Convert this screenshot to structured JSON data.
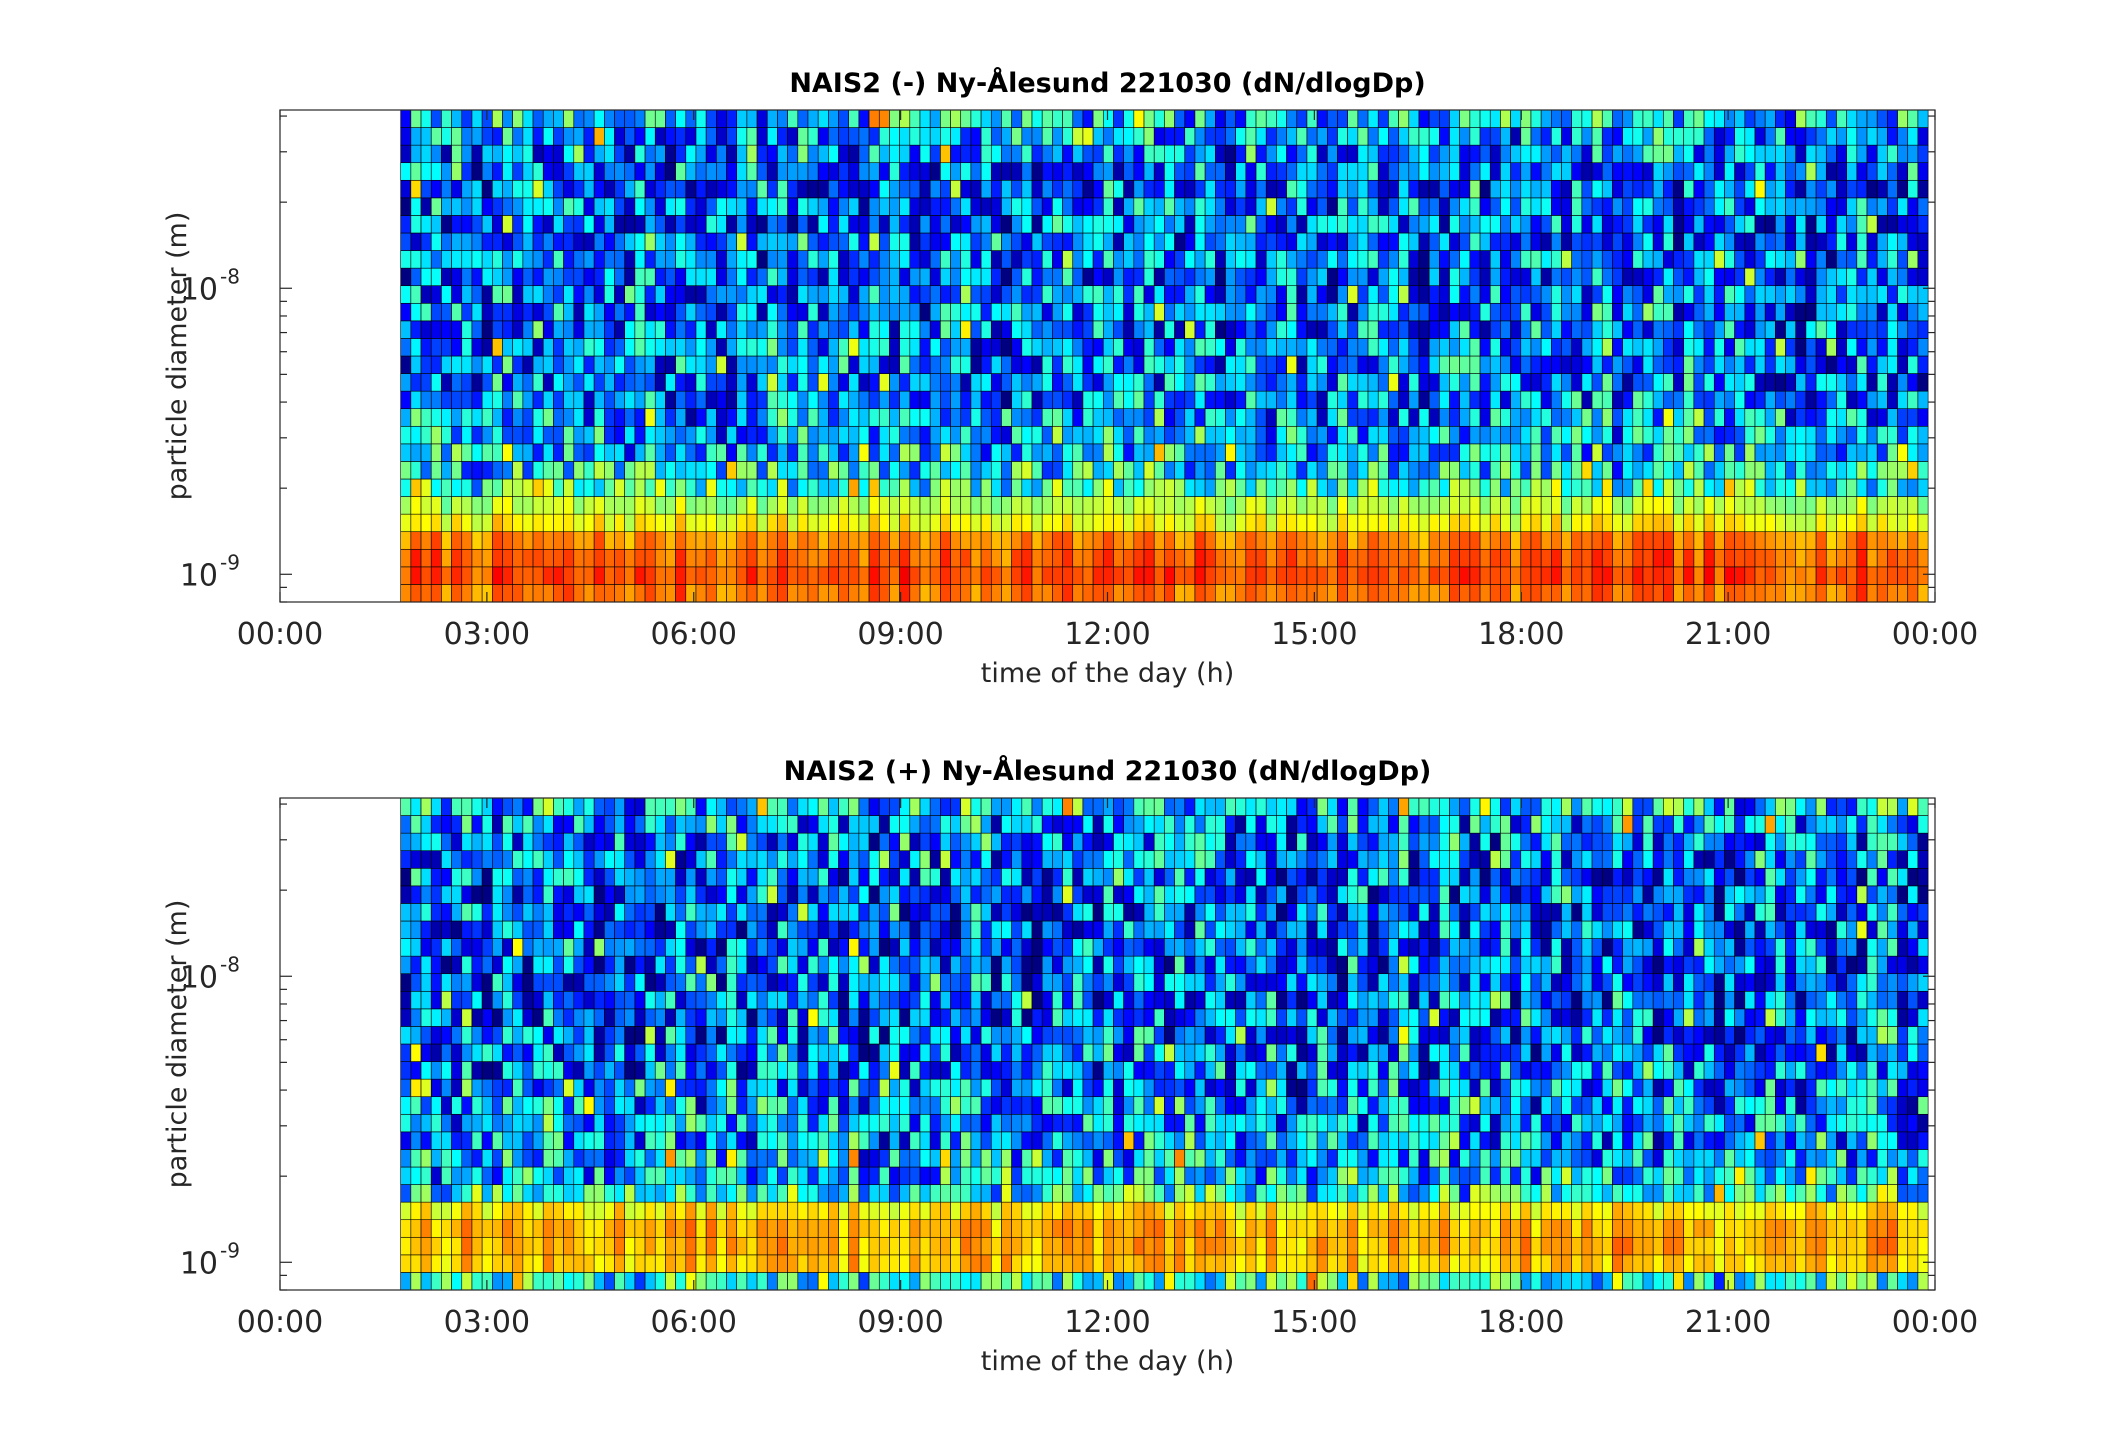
{
  "chart_data": [
    {
      "type": "heatmap",
      "title": "NAIS2 (-) Ny-Ålesund 221030 (dN/dlogDp)",
      "xlabel": "time of the day (h)",
      "ylabel": "particle diameter (m)",
      "x_tick_labels": [
        "00:00",
        "03:00",
        "06:00",
        "09:00",
        "12:00",
        "15:00",
        "18:00",
        "21:00",
        "00:00"
      ],
      "x_ticks_hours": [
        0,
        3,
        6,
        9,
        12,
        15,
        18,
        21,
        24
      ],
      "xlim_hours": [
        0,
        24
      ],
      "y_ticks": [
        {
          "base": "10",
          "exponent": "-9",
          "value": 1e-09
        },
        {
          "base": "10",
          "exponent": "-8",
          "value": 1e-08
        }
      ],
      "y_scale": "log",
      "ylim": [
        8e-10,
        4.2e-08
      ],
      "data_start_hours": 1.75,
      "data_end_hours": 23.9,
      "diameter_bins": 28,
      "colormap": "jet",
      "profile_by_bin": [
        0.76,
        0.8,
        0.78,
        0.74,
        0.62,
        0.55,
        0.45,
        0.36,
        0.32,
        0.29,
        0.27,
        0.25,
        0.24,
        0.24,
        0.24,
        0.24,
        0.24,
        0.23,
        0.22,
        0.22,
        0.22,
        0.22,
        0.22,
        0.22,
        0.23,
        0.24,
        0.28,
        0.34
      ],
      "noise": 0.2,
      "seed": 7
    },
    {
      "type": "heatmap",
      "title": "NAIS2 (+) Ny-Ålesund 221030 (dN/dlogDp)",
      "xlabel": "time of the day (h)",
      "ylabel": "particle diameter (m)",
      "x_tick_labels": [
        "00:00",
        "03:00",
        "06:00",
        "09:00",
        "12:00",
        "15:00",
        "18:00",
        "21:00",
        "00:00"
      ],
      "x_ticks_hours": [
        0,
        3,
        6,
        9,
        12,
        15,
        18,
        21,
        24
      ],
      "xlim_hours": [
        0,
        24
      ],
      "y_ticks": [
        {
          "base": "10",
          "exponent": "-9",
          "value": 1e-09
        },
        {
          "base": "10",
          "exponent": "-8",
          "value": 1e-08
        }
      ],
      "y_scale": "log",
      "ylim": [
        8e-10,
        4.2e-08
      ],
      "data_start_hours": 1.75,
      "data_end_hours": 23.9,
      "diameter_bins": 28,
      "colormap": "jet",
      "profile_by_bin": [
        0.4,
        0.68,
        0.7,
        0.7,
        0.64,
        0.4,
        0.33,
        0.3,
        0.28,
        0.27,
        0.26,
        0.25,
        0.24,
        0.24,
        0.23,
        0.22,
        0.22,
        0.21,
        0.21,
        0.21,
        0.21,
        0.21,
        0.21,
        0.21,
        0.22,
        0.23,
        0.27,
        0.33
      ],
      "noise": 0.21,
      "seed": 13
    }
  ]
}
